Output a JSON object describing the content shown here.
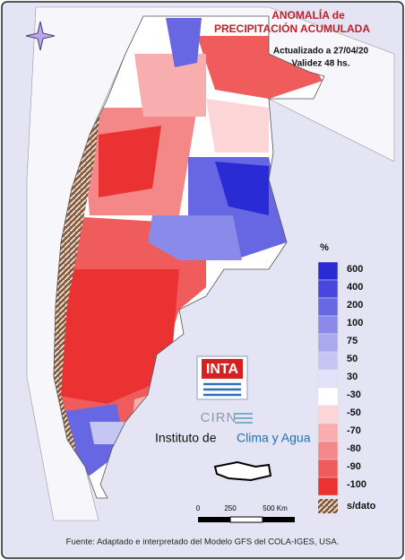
{
  "header": {
    "title_line1": "ANOMALÍA de",
    "title_line2": "PRECIPITACIÓN ACUMULADA",
    "updated": "Actualizado a 27/04/20",
    "validity": "Validez 48 hs."
  },
  "legend": {
    "unit": "%",
    "items": [
      {
        "label": "600",
        "color": "#2b2bd6"
      },
      {
        "label": "400",
        "color": "#4747dd"
      },
      {
        "label": "200",
        "color": "#6767e3"
      },
      {
        "label": "100",
        "color": "#8a8aea"
      },
      {
        "label": "75",
        "color": "#a9a9f0"
      },
      {
        "label": "50",
        "color": "#c6c6f5"
      },
      {
        "label": "30",
        "color": "#e2e2fa"
      },
      {
        "label": "-30",
        "color": "#ffffff"
      },
      {
        "label": "-50",
        "color": "#fcd6d6"
      },
      {
        "label": "-70",
        "color": "#f8aeae"
      },
      {
        "label": "-80",
        "color": "#f48888"
      },
      {
        "label": "-90",
        "color": "#f05c5c"
      },
      {
        "label": "-100",
        "color": "#eb3232"
      }
    ],
    "no_data": "s/dato"
  },
  "logos": {
    "inta": "INTA",
    "cirn": "CIRN",
    "institute_prefix": "Instituto de",
    "institute_name": "Clima y Agua"
  },
  "scale": {
    "start": "0",
    "mid": "250",
    "end": "500 Km"
  },
  "footer": "Fuente: Adaptado e interpretado del Modelo GFS del COLA-IGES, USA."
}
